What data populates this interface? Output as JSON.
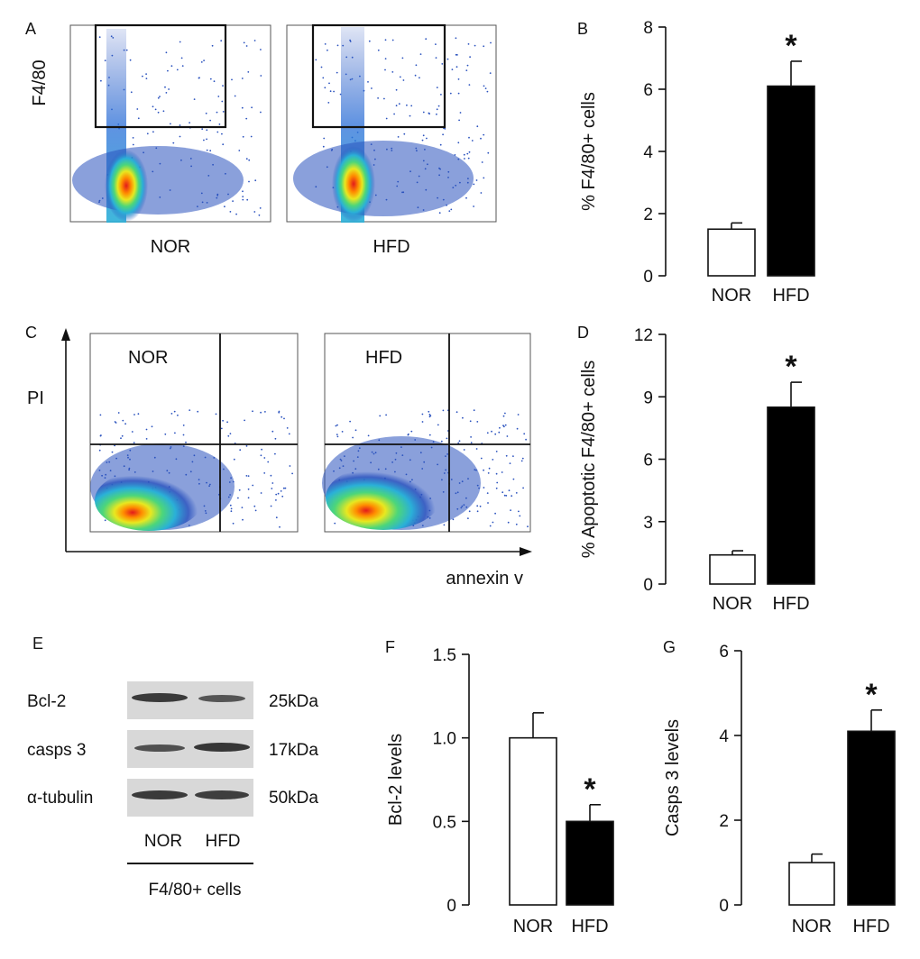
{
  "panels": {
    "A": {
      "letter": "A",
      "y_label": "F4/80",
      "groups": [
        "NOR",
        "HFD"
      ]
    },
    "C": {
      "letter": "C",
      "y_label": "PI",
      "x_label": "annexin v",
      "groups": [
        "NOR",
        "HFD"
      ]
    },
    "E": {
      "letter": "E",
      "rows": [
        {
          "name": "Bcl-2",
          "size": "25kDa"
        },
        {
          "name": "casps 3",
          "size": "17kDa"
        },
        {
          "name": "α-tubulin",
          "size": "50kDa"
        }
      ],
      "lanes": [
        "NOR",
        "HFD"
      ],
      "footer": "F4/80+ cells"
    }
  },
  "chart_data": [
    {
      "panel": "B",
      "type": "bar",
      "categories": [
        "NOR",
        "HFD"
      ],
      "values": [
        1.5,
        6.1
      ],
      "errors": [
        0.2,
        0.8
      ],
      "bar_colors": [
        "#ffffff",
        "#000000"
      ],
      "significance": [
        "",
        "*"
      ],
      "ylabel": "% F4/80+ cells",
      "ylim": [
        0,
        8
      ],
      "yticks": [
        "0",
        "2",
        "4",
        "6",
        "8"
      ]
    },
    {
      "panel": "D",
      "type": "bar",
      "categories": [
        "NOR",
        "HFD"
      ],
      "values": [
        1.4,
        8.5
      ],
      "errors": [
        0.2,
        1.2
      ],
      "bar_colors": [
        "#ffffff",
        "#000000"
      ],
      "significance": [
        "",
        "*"
      ],
      "ylabel": "% Apoptotic F4/80+ cells",
      "ylim": [
        0,
        12
      ],
      "yticks": [
        "0",
        "3",
        "6",
        "9",
        "12"
      ]
    },
    {
      "panel": "F",
      "type": "bar",
      "categories": [
        "NOR",
        "HFD"
      ],
      "values": [
        1.0,
        0.5
      ],
      "errors": [
        0.15,
        0.1
      ],
      "bar_colors": [
        "#ffffff",
        "#000000"
      ],
      "significance": [
        "",
        "*"
      ],
      "ylabel": "Bcl-2 levels",
      "ylim": [
        0,
        1.5
      ],
      "yticks": [
        "0",
        "0.5",
        "1.0",
        "1.5"
      ]
    },
    {
      "panel": "G",
      "type": "bar",
      "categories": [
        "NOR",
        "HFD"
      ],
      "values": [
        1.0,
        4.1
      ],
      "errors": [
        0.2,
        0.5
      ],
      "bar_colors": [
        "#ffffff",
        "#000000"
      ],
      "significance": [
        "",
        "*"
      ],
      "ylabel": "Casps 3 levels",
      "ylim": [
        0,
        6
      ],
      "yticks": [
        "0",
        "2",
        "4",
        "6"
      ]
    }
  ]
}
